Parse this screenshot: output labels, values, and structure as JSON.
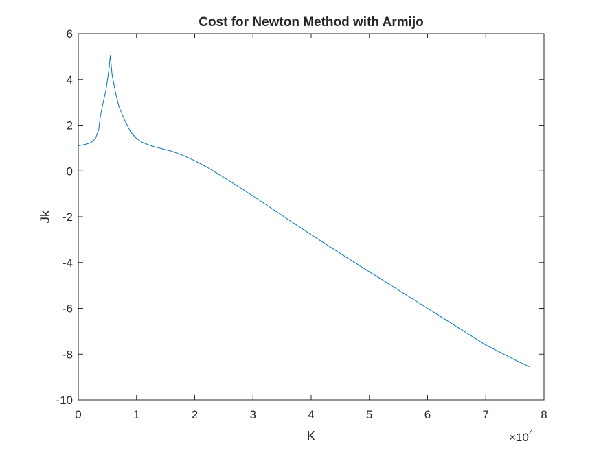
{
  "chart_data": {
    "type": "line",
    "title": "Cost for Newton Method with Armijo",
    "xlabel": "K",
    "ylabel": "Jk",
    "xlim": [
      0,
      80000
    ],
    "ylim": [
      -10,
      6
    ],
    "x_ticks": [
      0,
      1,
      2,
      3,
      4,
      5,
      6,
      7,
      8
    ],
    "x_tick_labels": [
      "0",
      "1",
      "2",
      "3",
      "4",
      "5",
      "6",
      "7",
      "8"
    ],
    "y_ticks": [
      6,
      4,
      2,
      0,
      -2,
      -4,
      -6,
      -8,
      -10
    ],
    "y_tick_labels": [
      "6",
      "4",
      "2",
      "0",
      "-2",
      "-4",
      "-6",
      "-8",
      "-10"
    ],
    "x_exponent_label": {
      "prefix": "×10",
      "power": "4"
    },
    "grid": false,
    "line_color": "#0072BD",
    "series": [
      {
        "x": [
          0,
          1000,
          2000,
          2500,
          3000,
          3500,
          3800,
          4200,
          4800,
          5300,
          5500,
          5800,
          6500,
          7000,
          8000,
          9000,
          10000,
          11000,
          12000,
          13000,
          14000,
          15000,
          16000,
          18000,
          20000,
          22000,
          25000,
          28000,
          30000,
          35000,
          40000,
          45000,
          50000,
          55000,
          60000,
          65000,
          70000,
          75000,
          77500
        ],
        "y": [
          1.1,
          1.15,
          1.22,
          1.3,
          1.45,
          1.8,
          2.4,
          2.9,
          3.6,
          4.5,
          5.05,
          4.2,
          3.3,
          2.8,
          2.2,
          1.7,
          1.42,
          1.25,
          1.15,
          1.06,
          1.0,
          0.93,
          0.87,
          0.68,
          0.45,
          0.18,
          -0.28,
          -0.76,
          -1.09,
          -1.94,
          -2.78,
          -3.6,
          -4.4,
          -5.2,
          -6.0,
          -6.8,
          -7.6,
          -8.25,
          -8.55
        ]
      }
    ]
  }
}
